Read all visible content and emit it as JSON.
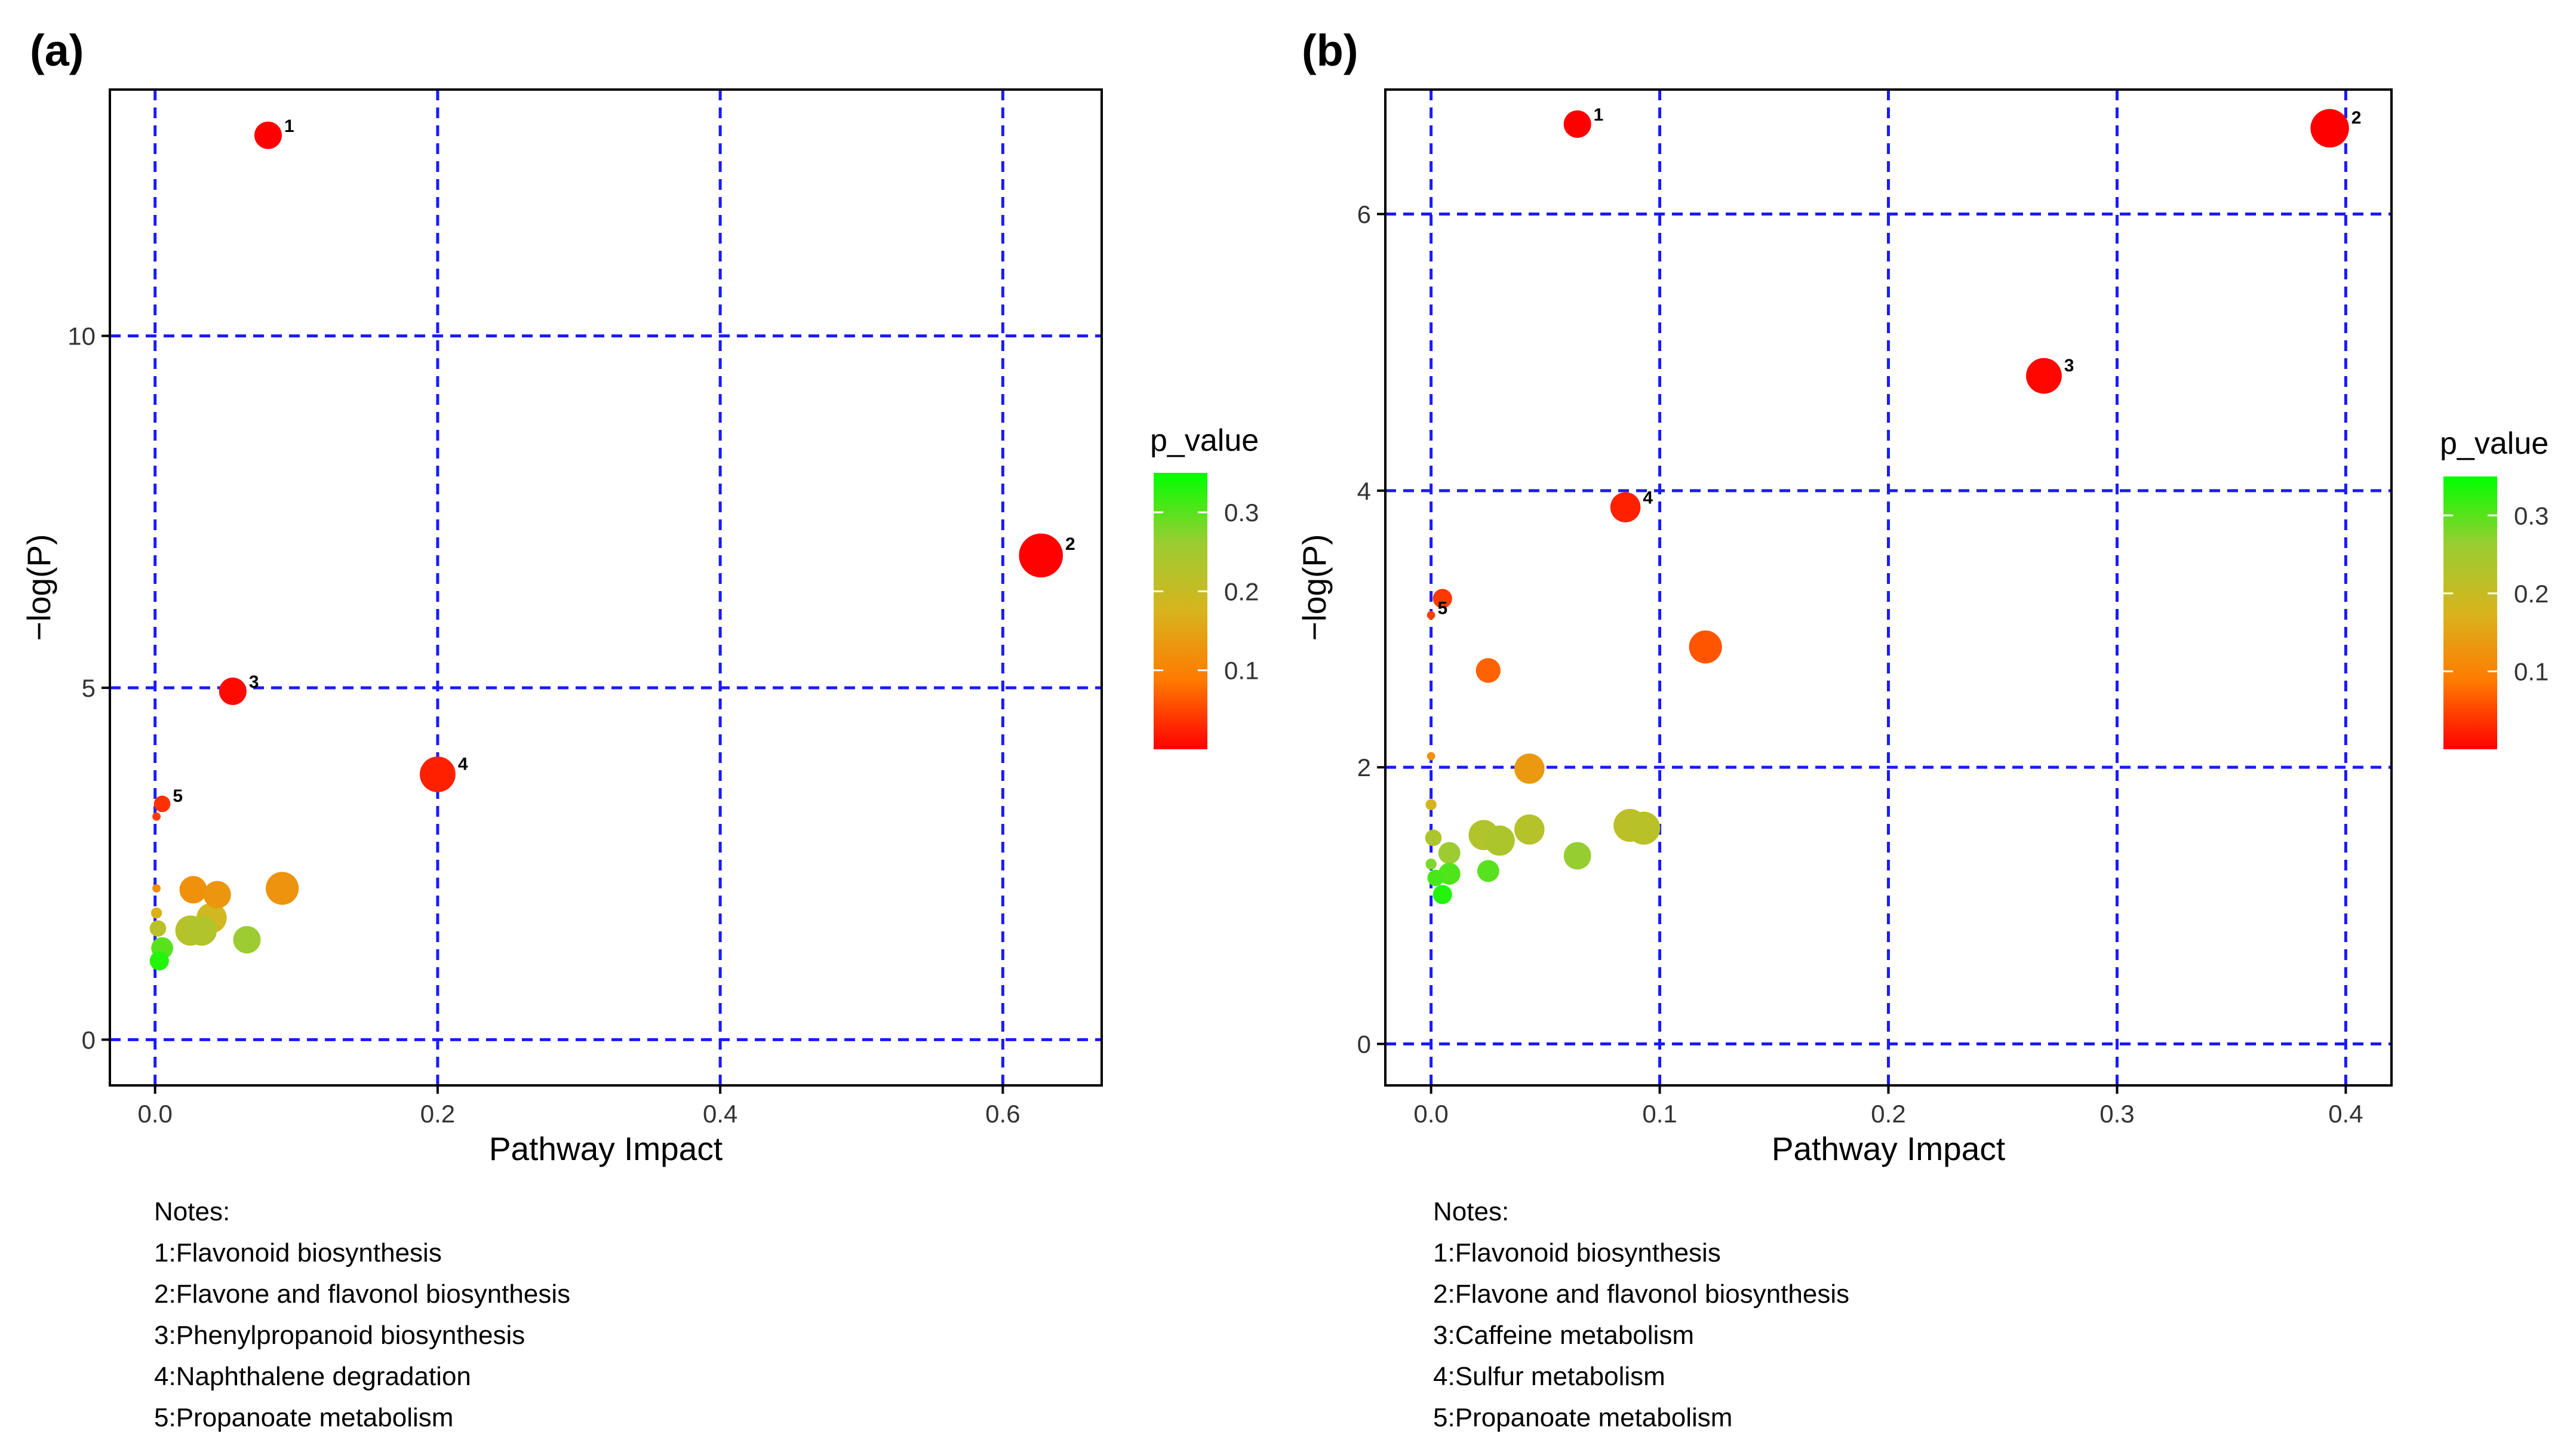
{
  "chart_data": [
    {
      "panel_label": "(a)",
      "type": "scatter",
      "xlabel": "Pathway Impact",
      "ylabel": "−log(P)",
      "xlim": [
        -0.032,
        0.67
      ],
      "ylim": [
        -0.65,
        13.5
      ],
      "x_ticks": [
        0.0,
        0.2,
        0.4,
        0.6
      ],
      "x_tick_labels": [
        "0.0",
        "0.2",
        "0.4",
        "0.6"
      ],
      "y_ticks": [
        0,
        5,
        10
      ],
      "y_tick_labels": [
        "0",
        "5",
        "10"
      ],
      "grid": "dashed-blue",
      "legend": {
        "title": "p_value",
        "position": "right",
        "min": 0.0,
        "max": 0.35,
        "tick_values": [
          0.1,
          0.2,
          0.3
        ],
        "tick_labels": [
          "0.1",
          "0.2",
          "0.3"
        ],
        "colors": [
          "#ff0000",
          "#ff7a00",
          "#d8b41e",
          "#9acd32",
          "#00ff00"
        ]
      },
      "points": [
        {
          "x": 0.08,
          "y": 12.85,
          "size": 5,
          "p": 0.0,
          "label": "1"
        },
        {
          "x": 0.627,
          "y": 6.88,
          "size": 8,
          "p": 0.001,
          "label": "2"
        },
        {
          "x": 0.055,
          "y": 4.95,
          "size": 5,
          "p": 0.007,
          "label": "3"
        },
        {
          "x": 0.2,
          "y": 3.77,
          "size": 6.5,
          "p": 0.023,
          "label": "4"
        },
        {
          "x": 0.005,
          "y": 3.35,
          "size": 3,
          "p": 0.035,
          "label": "5"
        },
        {
          "x": 0.001,
          "y": 3.17,
          "size": 1.5,
          "p": 0.042,
          "label": ""
        },
        {
          "x": 0.001,
          "y": 2.15,
          "size": 1.5,
          "p": 0.115,
          "label": ""
        },
        {
          "x": 0.027,
          "y": 2.13,
          "size": 5,
          "p": 0.12,
          "label": ""
        },
        {
          "x": 0.044,
          "y": 2.06,
          "size": 5,
          "p": 0.13,
          "label": ""
        },
        {
          "x": 0.09,
          "y": 2.15,
          "size": 6,
          "p": 0.125,
          "label": ""
        },
        {
          "x": 0.001,
          "y": 1.8,
          "size": 2,
          "p": 0.17,
          "label": ""
        },
        {
          "x": 0.04,
          "y": 1.73,
          "size": 5.5,
          "p": 0.185,
          "label": ""
        },
        {
          "x": 0.002,
          "y": 1.58,
          "size": 3,
          "p": 0.22,
          "label": ""
        },
        {
          "x": 0.025,
          "y": 1.55,
          "size": 5.5,
          "p": 0.225,
          "label": ""
        },
        {
          "x": 0.033,
          "y": 1.55,
          "size": 5.5,
          "p": 0.23,
          "label": ""
        },
        {
          "x": 0.065,
          "y": 1.42,
          "size": 5,
          "p": 0.26,
          "label": ""
        },
        {
          "x": 0.005,
          "y": 1.3,
          "size": 4,
          "p": 0.3,
          "label": ""
        },
        {
          "x": 0.003,
          "y": 1.12,
          "size": 3.5,
          "p": 0.33,
          "label": ""
        }
      ],
      "notes_title": "Notes:",
      "notes": [
        "1:Flavonoid biosynthesis",
        "2:Flavone and flavonol biosynthesis",
        "3:Phenylpropanoid biosynthesis",
        "4:Naphthalene degradation",
        "5:Propanoate metabolism"
      ]
    },
    {
      "panel_label": "(b)",
      "type": "scatter",
      "xlabel": "Pathway Impact",
      "ylabel": "−log(P)",
      "xlim": [
        -0.02,
        0.42
      ],
      "ylim": [
        -0.3,
        6.9
      ],
      "x_ticks": [
        0.0,
        0.1,
        0.2,
        0.3,
        0.4
      ],
      "x_tick_labels": [
        "0.0",
        "0.1",
        "0.2",
        "0.3",
        "0.4"
      ],
      "y_ticks": [
        0,
        2,
        4,
        6
      ],
      "y_tick_labels": [
        "0",
        "2",
        "4",
        "6"
      ],
      "grid": "dashed-blue",
      "legend": {
        "title": "p_value",
        "position": "right",
        "min": 0.0,
        "max": 0.35,
        "tick_values": [
          0.1,
          0.2,
          0.3
        ],
        "tick_labels": [
          "0.1",
          "0.2",
          "0.3"
        ],
        "colors": [
          "#ff0000",
          "#ff7a00",
          "#d8b41e",
          "#9acd32",
          "#00ff00"
        ]
      },
      "points": [
        {
          "x": 0.064,
          "y": 6.65,
          "size": 5,
          "p": 0.0,
          "label": "1"
        },
        {
          "x": 0.393,
          "y": 6.62,
          "size": 7,
          "p": 0.0,
          "label": "2"
        },
        {
          "x": 0.268,
          "y": 4.83,
          "size": 6.5,
          "p": 0.005,
          "label": "3"
        },
        {
          "x": 0.085,
          "y": 3.88,
          "size": 5.5,
          "p": 0.023,
          "label": "4"
        },
        {
          "x": 0.005,
          "y": 3.22,
          "size": 3.5,
          "p": 0.04,
          "label": ""
        },
        {
          "x": 0.0,
          "y": 3.1,
          "size": 1.5,
          "p": 0.045,
          "label": "5"
        },
        {
          "x": 0.12,
          "y": 2.87,
          "size": 6,
          "p": 0.06,
          "label": ""
        },
        {
          "x": 0.025,
          "y": 2.7,
          "size": 4.5,
          "p": 0.07,
          "label": ""
        },
        {
          "x": 0.0,
          "y": 2.08,
          "size": 1.5,
          "p": 0.12,
          "label": ""
        },
        {
          "x": 0.043,
          "y": 1.99,
          "size": 5.5,
          "p": 0.135,
          "label": ""
        },
        {
          "x": 0.0,
          "y": 1.73,
          "size": 2,
          "p": 0.18,
          "label": ""
        },
        {
          "x": 0.087,
          "y": 1.58,
          "size": 6,
          "p": 0.215,
          "label": ""
        },
        {
          "x": 0.093,
          "y": 1.56,
          "size": 6,
          "p": 0.22,
          "label": ""
        },
        {
          "x": 0.043,
          "y": 1.55,
          "size": 5.5,
          "p": 0.225,
          "label": ""
        },
        {
          "x": 0.023,
          "y": 1.51,
          "size": 5.5,
          "p": 0.23,
          "label": ""
        },
        {
          "x": 0.03,
          "y": 1.47,
          "size": 5.5,
          "p": 0.235,
          "label": ""
        },
        {
          "x": 0.001,
          "y": 1.49,
          "size": 3,
          "p": 0.235,
          "label": ""
        },
        {
          "x": 0.008,
          "y": 1.38,
          "size": 4,
          "p": 0.26,
          "label": ""
        },
        {
          "x": 0.064,
          "y": 1.36,
          "size": 5,
          "p": 0.265,
          "label": ""
        },
        {
          "x": 0.0,
          "y": 1.3,
          "size": 2,
          "p": 0.28,
          "label": ""
        },
        {
          "x": 0.025,
          "y": 1.25,
          "size": 4,
          "p": 0.3,
          "label": ""
        },
        {
          "x": 0.008,
          "y": 1.23,
          "size": 4,
          "p": 0.305,
          "label": ""
        },
        {
          "x": 0.002,
          "y": 1.2,
          "size": 3,
          "p": 0.31,
          "label": ""
        },
        {
          "x": 0.005,
          "y": 1.08,
          "size": 3.5,
          "p": 0.33,
          "label": ""
        }
      ],
      "notes_title": "Notes:",
      "notes": [
        "1:Flavonoid biosynthesis",
        "2:Flavone and flavonol biosynthesis",
        "3:Caffeine metabolism",
        "4:Sulfur metabolism",
        "5:Propanoate metabolism"
      ]
    }
  ]
}
